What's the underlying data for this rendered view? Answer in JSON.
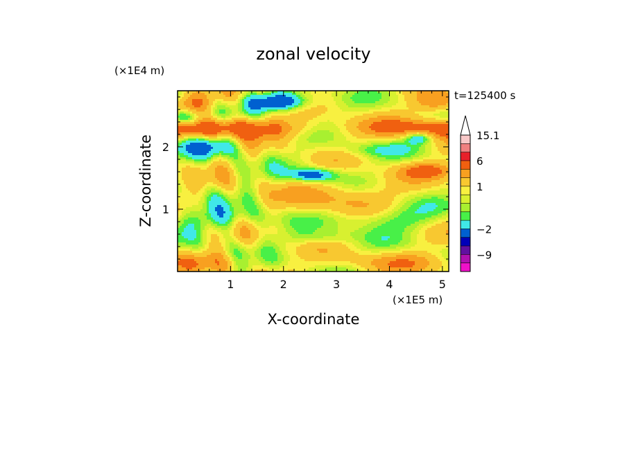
{
  "chart_data": {
    "type": "heatmap",
    "title": "zonal velocity",
    "xlabel": "X-coordinate",
    "ylabel": "Z-coordinate",
    "x_unit": "(×1E5 m)",
    "y_unit": "(×1E4 m)",
    "time_label": "t=125400 s",
    "xlim": [
      0,
      5.12
    ],
    "ylim": [
      0,
      2.9
    ],
    "x_ticks": [
      {
        "value": 1,
        "label": "1"
      },
      {
        "value": 2,
        "label": "2"
      },
      {
        "value": 3,
        "label": "3"
      },
      {
        "value": 4,
        "label": "4"
      },
      {
        "value": 5,
        "label": "5"
      }
    ],
    "y_ticks": [
      {
        "value": 1,
        "label": "1"
      },
      {
        "value": 2,
        "label": "2"
      }
    ],
    "colorbar": {
      "labels": [
        "15.1",
        "6",
        "1",
        "−2",
        "−9"
      ],
      "levels_high_to_low": [
        15.1,
        12,
        9,
        6,
        3,
        2,
        1,
        0.5,
        0,
        -0.5,
        -1,
        -2,
        -4,
        -7,
        -9,
        -12
      ],
      "colors_high_to_low": [
        "#f8c8c8",
        "#f08080",
        "#e8202a",
        "#f06010",
        "#f8a020",
        "#f8c830",
        "#f8f040",
        "#d8f030",
        "#a8f030",
        "#48f048",
        "#40e8e8",
        "#0060d0",
        "#0000b8",
        "#6010a0",
        "#b010b0",
        "#f010c8"
      ],
      "open_top": true
    },
    "field_description": "2D contour field of zonal velocity u(x,z); positive (warm) bands near z≈2.2–2.6 and negative (blue) bands near z≈1.5 and z≈2.6–2.8",
    "sample_values": [
      {
        "x": 0.3,
        "z": 2.4,
        "u": -2.5
      },
      {
        "x": 1.9,
        "z": 2.8,
        "u": -4
      },
      {
        "x": 2.1,
        "z": 2.3,
        "u": 4
      },
      {
        "x": 2.6,
        "z": 1.6,
        "u": -3
      },
      {
        "x": 4.7,
        "z": 1.7,
        "u": 3
      },
      {
        "x": 3.0,
        "z": 1.2,
        "u": 2
      },
      {
        "x": 2.5,
        "z": 0.5,
        "u": -1
      },
      {
        "x": 1.3,
        "z": 0.3,
        "u": 0.8
      }
    ]
  }
}
